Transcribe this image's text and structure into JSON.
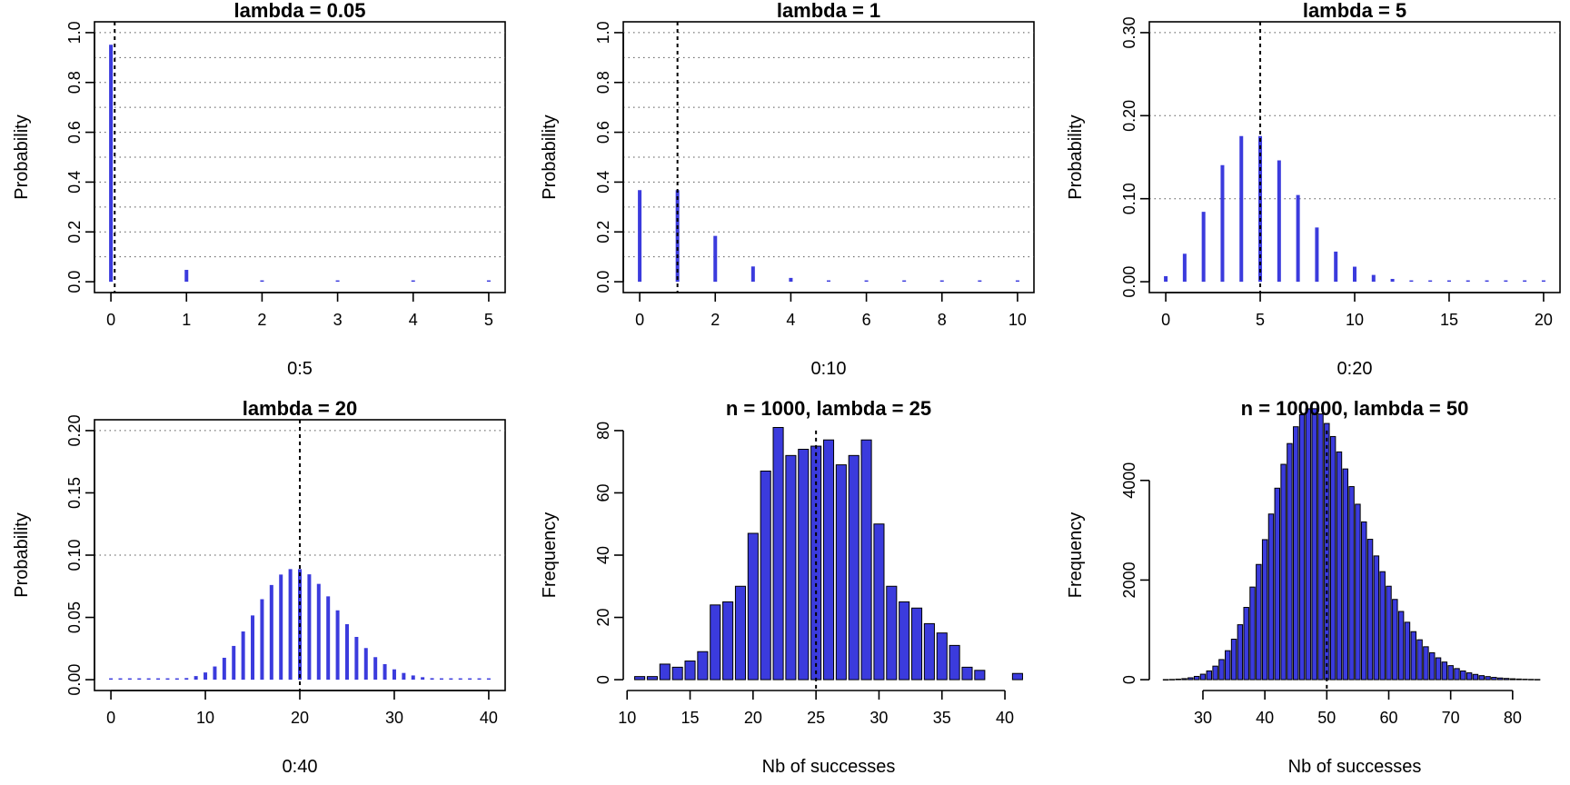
{
  "chart_data": [
    {
      "type": "bar",
      "title": "lambda = 0.05",
      "xlabel": "0:5",
      "ylabel": "Probability",
      "x": [
        0,
        1,
        2,
        3,
        4,
        5
      ],
      "values": [
        0.9512,
        0.0476,
        0.0012,
        2e-05,
        0.0,
        0.0
      ],
      "xlim": [
        0,
        5
      ],
      "ylim": [
        0,
        1
      ],
      "xticks": [
        0,
        1,
        2,
        3,
        4,
        5
      ],
      "yticks": [
        0,
        0.2,
        0.4,
        0.6,
        0.8,
        1
      ],
      "ytick_labels": [
        "0.0",
        "0.2",
        "0.4",
        "0.6",
        "0.8",
        "1.0"
      ],
      "hgrid": [
        0.1,
        0.2,
        0.3,
        0.4,
        0.5,
        0.6,
        0.7,
        0.8,
        0.9,
        1.0
      ],
      "vline": 0.05,
      "bar_color": "#3b3bdd",
      "grid": true
    },
    {
      "type": "bar",
      "title": "lambda = 1",
      "xlabel": "0:10",
      "ylabel": "Probability",
      "x": [
        0,
        1,
        2,
        3,
        4,
        5,
        6,
        7,
        8,
        9,
        10
      ],
      "values": [
        0.3679,
        0.3679,
        0.1839,
        0.0613,
        0.0153,
        0.0031,
        0.0005,
        0.0001,
        0.0,
        0.0,
        0.0
      ],
      "xlim": [
        0,
        10
      ],
      "ylim": [
        0,
        1
      ],
      "xticks": [
        0,
        2,
        4,
        6,
        8,
        10
      ],
      "yticks": [
        0,
        0.2,
        0.4,
        0.6,
        0.8,
        1
      ],
      "ytick_labels": [
        "0.0",
        "0.2",
        "0.4",
        "0.6",
        "0.8",
        "1.0"
      ],
      "hgrid": [
        0.1,
        0.2,
        0.3,
        0.4,
        0.5,
        0.6,
        0.7,
        0.8,
        0.9,
        1.0
      ],
      "vline": 1,
      "bar_color": "#3b3bdd",
      "grid": true
    },
    {
      "type": "bar",
      "title": "lambda = 5",
      "xlabel": "0:20",
      "ylabel": "Probability",
      "x": [
        0,
        1,
        2,
        3,
        4,
        5,
        6,
        7,
        8,
        9,
        10,
        11,
        12,
        13,
        14,
        15,
        16,
        17,
        18,
        19,
        20
      ],
      "values": [
        0.0067,
        0.0337,
        0.0842,
        0.1404,
        0.1755,
        0.1755,
        0.1462,
        0.1044,
        0.0653,
        0.0363,
        0.0181,
        0.0082,
        0.0034,
        0.0013,
        0.0005,
        0.0002,
        0.0001,
        0.0,
        0.0,
        0.0,
        0.0
      ],
      "xlim": [
        0,
        20
      ],
      "ylim": [
        0,
        0.3
      ],
      "xticks": [
        0,
        5,
        10,
        15,
        20
      ],
      "yticks": [
        0,
        0.1,
        0.2,
        0.3
      ],
      "ytick_labels": [
        "0.00",
        "0.10",
        "0.20",
        "0.30"
      ],
      "hgrid": [
        0.1,
        0.2,
        0.3
      ],
      "vline": 5,
      "bar_color": "#3b3bdd",
      "grid": true
    },
    {
      "type": "bar",
      "title": "lambda = 20",
      "xlabel": "0:40",
      "ylabel": "Probability",
      "x": [
        0,
        1,
        2,
        3,
        4,
        5,
        6,
        7,
        8,
        9,
        10,
        11,
        12,
        13,
        14,
        15,
        16,
        17,
        18,
        19,
        20,
        21,
        22,
        23,
        24,
        25,
        26,
        27,
        28,
        29,
        30,
        31,
        32,
        33,
        34,
        35,
        36,
        37,
        38,
        39,
        40
      ],
      "values": [
        0.0,
        0.0,
        0.0,
        0.0,
        0.0,
        0.0001,
        0.0002,
        0.0005,
        0.0013,
        0.0029,
        0.0058,
        0.0106,
        0.0176,
        0.0271,
        0.0387,
        0.0516,
        0.0646,
        0.076,
        0.0844,
        0.0888,
        0.0888,
        0.0846,
        0.0769,
        0.0669,
        0.0557,
        0.0446,
        0.0343,
        0.0254,
        0.0181,
        0.0125,
        0.0083,
        0.0054,
        0.0034,
        0.002,
        0.0012,
        0.0007,
        0.0004,
        0.0002,
        0.0001,
        0.0001,
        0.0
      ],
      "xlim": [
        0,
        40
      ],
      "ylim": [
        0,
        0.2
      ],
      "xticks": [
        0,
        10,
        20,
        30,
        40
      ],
      "yticks": [
        0,
        0.05,
        0.1,
        0.15,
        0.2
      ],
      "ytick_labels": [
        "0.00",
        "0.05",
        "0.10",
        "0.15",
        "0.20"
      ],
      "hgrid": [
        0.1,
        0.2
      ],
      "vline": 20,
      "bar_color": "#3b3bdd",
      "grid": true
    },
    {
      "type": "histogram",
      "title": "n = 1000, lambda = 25",
      "xlabel": "Nb of successes",
      "ylabel": "Frequency",
      "x": [
        11,
        12,
        13,
        14,
        15,
        16,
        17,
        18,
        19,
        20,
        21,
        22,
        23,
        24,
        25,
        26,
        27,
        28,
        29,
        30,
        31,
        32,
        33,
        34,
        35,
        36,
        37,
        38,
        39,
        40,
        41
      ],
      "values": [
        1,
        1,
        5,
        4,
        6,
        9,
        24,
        25,
        30,
        47,
        67,
        81,
        72,
        74,
        75,
        77,
        69,
        72,
        77,
        50,
        30,
        25,
        23,
        18,
        15,
        11,
        4,
        3,
        0,
        0,
        2
      ],
      "xlim": [
        11,
        41
      ],
      "ylim": [
        0,
        80
      ],
      "xticks": [
        10,
        15,
        20,
        25,
        30,
        35,
        40
      ],
      "yticks": [
        0,
        20,
        40,
        60,
        80
      ],
      "ytick_labels": [
        "0",
        "20",
        "40",
        "60",
        "80"
      ],
      "vline": 25,
      "bar_color": "#3b3bdd",
      "grid": false
    },
    {
      "type": "histogram",
      "title": "n = 100000, lambda = 50",
      "xlabel": "Nb of successes",
      "ylabel": "Frequency",
      "x": [
        24,
        25,
        26,
        27,
        28,
        29,
        30,
        31,
        32,
        33,
        34,
        35,
        36,
        37,
        38,
        39,
        40,
        41,
        42,
        43,
        44,
        45,
        46,
        47,
        48,
        49,
        50,
        51,
        52,
        53,
        54,
        55,
        56,
        57,
        58,
        59,
        60,
        61,
        62,
        63,
        64,
        65,
        66,
        67,
        68,
        69,
        70,
        71,
        72,
        73,
        74,
        75,
        76,
        77,
        78,
        79,
        80,
        81,
        82,
        83,
        84
      ],
      "values": [
        2,
        5,
        11,
        21,
        38,
        66,
        110,
        176,
        272,
        404,
        582,
        813,
        1103,
        1451,
        1859,
        2313,
        2811,
        3325,
        3844,
        4323,
        4740,
        5077,
        5318,
        5438,
        5440,
        5334,
        5143,
        4881,
        4572,
        4230,
        3876,
        3522,
        3167,
        2818,
        2484,
        2168,
        1876,
        1611,
        1369,
        1153,
        964,
        801,
        661,
        541,
        439,
        354,
        282,
        223,
        175,
        137,
        106,
        81,
        62,
        46,
        34,
        25,
        18,
        13,
        9,
        6,
        4
      ],
      "xlim": [
        24,
        85
      ],
      "ylim": [
        0,
        5000
      ],
      "xticks": [
        30,
        40,
        50,
        60,
        70,
        80
      ],
      "yticks": [
        0,
        2000,
        4000
      ],
      "ytick_labels": [
        "0",
        "2000",
        "4000"
      ],
      "vline": 50,
      "bar_color": "#3b3bdd",
      "grid": false
    }
  ]
}
